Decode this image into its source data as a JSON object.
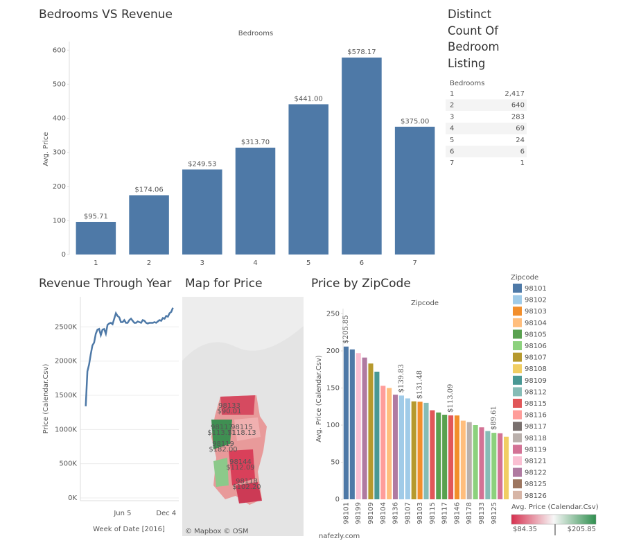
{
  "chart_data": [
    {
      "type": "bar",
      "title": "Bedrooms VS Revenue",
      "header": "Bedrooms",
      "y_label": "Avg. Price",
      "categories": [
        "1",
        "2",
        "3",
        "4",
        "5",
        "6",
        "7"
      ],
      "values": [
        95.71,
        174.06,
        249.53,
        313.7,
        441.0,
        578.17,
        375.0
      ],
      "value_labels": [
        "$95.71",
        "$174.06",
        "$249.53",
        "$313.70",
        "$441.00",
        "$578.17",
        "$375.00"
      ],
      "color": "#4e79a7",
      "ylim": [
        0,
        625
      ],
      "yticks": [
        0,
        100,
        200,
        300,
        400,
        500,
        600
      ],
      "grid": false
    },
    {
      "type": "table",
      "title": "Distinct Count Of Bedroom Listing",
      "header": "Bedrooms",
      "rows": [
        [
          "1",
          "2,417"
        ],
        [
          "2",
          "640"
        ],
        [
          "3",
          "283"
        ],
        [
          "4",
          "69"
        ],
        [
          "5",
          "24"
        ],
        [
          "6",
          "6"
        ],
        [
          "7",
          "1"
        ]
      ]
    },
    {
      "type": "line",
      "title": "Revenue Through Year",
      "x_label": "Week of Date [2016]",
      "y_label": "Price (Calendar.Csv)",
      "categories": [
        null,
        null,
        null,
        null,
        null,
        null,
        null,
        null,
        null,
        null,
        null,
        null,
        null,
        null,
        null,
        null,
        null,
        null,
        null,
        null,
        null,
        null,
        "Jun 5",
        null,
        null,
        null,
        null,
        null,
        null,
        null,
        null,
        null,
        null,
        null,
        null,
        null,
        null,
        null,
        null,
        null,
        null,
        null,
        null,
        null,
        null,
        null,
        null,
        null,
        "Dec 4",
        null,
        null,
        null,
        null
      ],
      "values": [
        1340000,
        1850000,
        1950000,
        2100000,
        2230000,
        2270000,
        2400000,
        2460000,
        2470000,
        2380000,
        2460000,
        2470000,
        2400000,
        2530000,
        2550000,
        2560000,
        2540000,
        2620000,
        2700000,
        2660000,
        2640000,
        2570000,
        2570000,
        2600000,
        2560000,
        2560000,
        2600000,
        2620000,
        2590000,
        2560000,
        2560000,
        2580000,
        2570000,
        2560000,
        2600000,
        2590000,
        2560000,
        2550000,
        2560000,
        2560000,
        2560000,
        2570000,
        2560000,
        2580000,
        2600000,
        2590000,
        2630000,
        2620000,
        2660000,
        2650000,
        2700000,
        2720000,
        2780000
      ],
      "color": "#4e79a7",
      "ylim": [
        0,
        2940000
      ],
      "yticks": [
        {
          "value": 0,
          "label": "0K"
        },
        {
          "value": 500000,
          "label": "500K"
        },
        {
          "value": 1000000,
          "label": "1000K"
        },
        {
          "value": 1500000,
          "label": "1500K"
        },
        {
          "value": 2000000,
          "label": "2000K"
        },
        {
          "value": 2500000,
          "label": "2500K"
        }
      ],
      "grid": true
    },
    {
      "type": "map",
      "title": "Map for Price",
      "attribution": "© Mapbox  © OSM",
      "regions": [
        {
          "zip": "98133",
          "label": "$90.01"
        },
        {
          "zip": "98117",
          "label": "$113.71"
        },
        {
          "zip": "98115",
          "label": "$118.13"
        },
        {
          "zip": "98119",
          "label": "$182.00"
        },
        {
          "zip": "98144",
          "label": "$112.09"
        },
        {
          "zip": "98118",
          "label": "$102.20"
        }
      ]
    },
    {
      "type": "bar",
      "title": "Price by ZipCode",
      "header": "Zipcode",
      "y_label": "Avg. Price (Calendar.Csv)",
      "categories": [
        "98101",
        null,
        "98199",
        null,
        "98109",
        null,
        "98104",
        null,
        "98136",
        null,
        "98107",
        null,
        "98103",
        null,
        "98115",
        null,
        "98117",
        null,
        "98146",
        null,
        "98178",
        null,
        "98133",
        null,
        "98125",
        null,
        null
      ],
      "values": [
        205.85,
        202,
        197,
        191,
        183,
        172,
        153,
        150,
        141,
        139.83,
        136,
        132,
        131.48,
        130,
        120,
        117,
        114,
        113.09,
        113,
        106,
        104,
        100,
        97,
        92,
        89.61,
        89,
        84.35
      ],
      "value_labels": [
        "$205.85",
        null,
        null,
        null,
        null,
        null,
        null,
        null,
        null,
        "$139.83",
        null,
        null,
        "$131.48",
        null,
        null,
        null,
        null,
        "$113.09",
        null,
        null,
        null,
        null,
        null,
        null,
        "$89.61",
        null,
        null
      ],
      "colors": [
        "#4e79a7",
        "#4e79a7",
        "#fabfd2",
        "#b07aa1",
        "#b6992d",
        "#499894",
        "#ff9d9a",
        "#ffbe7d",
        "#b07aa1",
        "#a0cbe8",
        "#a0cbe8",
        "#b6992d",
        "#f28e2b",
        "#86bcb6",
        "#e15759",
        "#59a14f",
        "#59a14f",
        "#e15759",
        "#f28e2b",
        "#ffbe7d",
        "#bab0ac",
        "#8cd17d",
        "#d37295",
        "#86bcb6",
        "#8cd17d",
        "#d37295",
        "#f1ce63"
      ],
      "ylim": [
        0,
        257
      ],
      "yticks": [
        0,
        50,
        100,
        150,
        200,
        250
      ],
      "grid": false,
      "legend": {
        "title": "Zipcode",
        "names": [
          "98101",
          "98102",
          "98103",
          "98104",
          "98105",
          "98106",
          "98107",
          "98108",
          "98109",
          "98112",
          "98115",
          "98116",
          "98117",
          "98118",
          "98119",
          "98121",
          "98122",
          "98125",
          "98126"
        ],
        "colors": [
          "#4e79a7",
          "#a0cbe8",
          "#f28e2b",
          "#ffbe7d",
          "#59a14f",
          "#8cd17d",
          "#b6992d",
          "#f1ce63",
          "#499894",
          "#86bcb6",
          "#e15759",
          "#ff9d9a",
          "#79706e",
          "#bab0ac",
          "#d37295",
          "#fabfd2",
          "#b07aa1",
          "#9d7660",
          "#d7b5a6"
        ]
      },
      "color_legend": {
        "title": "Avg. Price (Calendar.Csv)",
        "min_label": "$84.35",
        "max_label": "$205.85",
        "colors": [
          "#d6304f",
          "#f7f7f7",
          "#2f8f4f"
        ]
      }
    }
  ],
  "watermark": "nafezly.com"
}
